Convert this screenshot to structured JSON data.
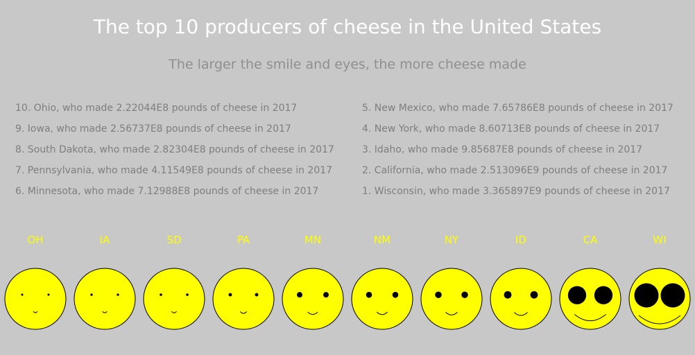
{
  "chart_data": {
    "type": "table",
    "title": "The top 10 producers of cheese in the United States",
    "subtitle": "The larger the smile and eyes, the more cheese made",
    "rows_left": [
      "10. Ohio, who made 2.22044E8 pounds of cheese in 2017",
      "9. Iowa, who made 2.56737E8 pounds of cheese in 2017",
      "8. South Dakota, who made 2.82304E8 pounds of cheese in 2017",
      "7. Pennsylvania, who made 4.11549E8 pounds of cheese in 2017",
      "6. Minnesota, who made 7.12988E8 pounds of cheese in 2017"
    ],
    "rows_right": [
      "5. New Mexico, who made 7.65786E8 pounds of cheese in 2017",
      "4. New York, who made 8.60713E8 pounds of cheese in 2017",
      "3. Idaho, who made 9.85687E8 pounds of cheese in 2017",
      "2. California, who made 2.513096E9 pounds of cheese in 2017",
      "1. Wisconsin, who made 3.365897E9 pounds of cheese in 2017"
    ],
    "categories": [
      "OH",
      "IA",
      "SD",
      "PA",
      "MN",
      "NM",
      "NY",
      "ID",
      "CA",
      "WI"
    ],
    "values": [
      222044000,
      256737000,
      282304000,
      411549000,
      712988000,
      765786000,
      860713000,
      985687000,
      2513096000,
      3365897000
    ],
    "unit": "pounds of cheese in 2017",
    "colors": {
      "face": "#ffff00",
      "label": "#ffff00",
      "features": "#000000",
      "background": "#c8c8c8"
    }
  }
}
